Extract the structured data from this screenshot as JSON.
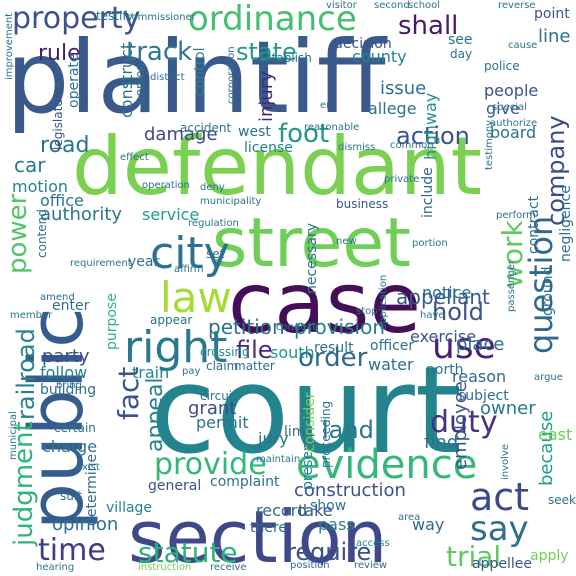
{
  "words": [
    {
      "text": "plaintiff",
      "color": "#3b5a8c"
    },
    {
      "text": "court",
      "color": "#23848e"
    },
    {
      "text": "defendant",
      "color": "#7ad151"
    },
    {
      "text": "case",
      "color": "#440f57"
    },
    {
      "text": "section",
      "color": "#3f4889"
    },
    {
      "text": "street",
      "color": "#6ece58"
    },
    {
      "text": "public",
      "color": "#365c8d"
    },
    {
      "text": "city",
      "color": "#2c728e"
    },
    {
      "text": "law",
      "color": "#a5db36"
    },
    {
      "text": "right",
      "color": "#2a788e"
    },
    {
      "text": "evidence",
      "color": "#35b779"
    },
    {
      "text": "provide",
      "color": "#35b779"
    },
    {
      "text": "statute",
      "color": "#2db27d"
    },
    {
      "text": "property",
      "color": "#3b528b"
    },
    {
      "text": "ordinance",
      "color": "#44bf70"
    },
    {
      "text": "act",
      "color": "#3e4989"
    },
    {
      "text": "say",
      "color": "#2e6e8e"
    },
    {
      "text": "question",
      "color": "#31688e"
    },
    {
      "text": "use",
      "color": "#482173"
    },
    {
      "text": "order",
      "color": "#31688e"
    },
    {
      "text": "time",
      "color": "#443983"
    },
    {
      "text": "fact",
      "color": "#3a548c"
    },
    {
      "text": "trial",
      "color": "#5ec962"
    },
    {
      "text": "track",
      "color": "#2a788e"
    },
    {
      "text": "foot",
      "color": "#1f988b"
    },
    {
      "text": "work",
      "color": "#5ec962"
    },
    {
      "text": "duty",
      "color": "#46327e"
    },
    {
      "text": "rule",
      "color": "#481d6f"
    },
    {
      "text": "state",
      "color": "#1e9b8a"
    },
    {
      "text": "judgment",
      "color": "#2fb47c"
    },
    {
      "text": "railroad",
      "color": "#26828e"
    },
    {
      "text": "power",
      "color": "#52c569"
    },
    {
      "text": "shall",
      "color": "#48186a"
    },
    {
      "text": "company",
      "color": "#3e4a89"
    },
    {
      "text": "road",
      "color": "#2c728e"
    },
    {
      "text": "action",
      "color": "#3b528b"
    },
    {
      "text": "require",
      "color": "#3d4e8a"
    },
    {
      "text": "land",
      "color": "#2a778e"
    },
    {
      "text": "car",
      "color": "#29798e"
    },
    {
      "text": "file",
      "color": "#482878"
    },
    {
      "text": "hold",
      "color": "#3b528b"
    },
    {
      "text": "appeal",
      "color": "#25838e"
    },
    {
      "text": "provision",
      "color": "#26818e"
    },
    {
      "text": "petition",
      "color": "#2d708e"
    },
    {
      "text": "appellant",
      "color": "#38588c"
    },
    {
      "text": "construction",
      "color": "#3b528b"
    },
    {
      "text": "opinion",
      "color": "#2d708e"
    },
    {
      "text": "damage",
      "color": "#3e4989"
    },
    {
      "text": "service",
      "color": "#1e9d89"
    },
    {
      "text": "authority",
      "color": "#2c738e"
    },
    {
      "text": "injury",
      "color": "#482677"
    },
    {
      "text": "county",
      "color": "#26828e"
    },
    {
      "text": "issue",
      "color": "#2d708e"
    },
    {
      "text": "construct",
      "color": "#2c718e"
    },
    {
      "text": "highway",
      "color": "#21918c"
    },
    {
      "text": "motion",
      "color": "#25848e"
    },
    {
      "text": "office",
      "color": "#2a778e"
    },
    {
      "text": "allege",
      "color": "#2c728e"
    },
    {
      "text": "decision",
      "color": "#3a548c"
    },
    {
      "text": "people",
      "color": "#3b528b"
    },
    {
      "text": "give",
      "color": "#37598c"
    },
    {
      "text": "board",
      "color": "#2c728e"
    },
    {
      "text": "line",
      "color": "#2d708e"
    },
    {
      "text": "point",
      "color": "#3b528b"
    },
    {
      "text": "grant",
      "color": "#3d4d8a"
    },
    {
      "text": "notice",
      "color": "#2e6d8e"
    },
    {
      "text": "exercise",
      "color": "#3b528b"
    },
    {
      "text": "place",
      "color": "#2f6c8e"
    },
    {
      "text": "party",
      "color": "#3e4a89"
    },
    {
      "text": "water",
      "color": "#2c718e"
    },
    {
      "text": "owner",
      "color": "#2a788e"
    },
    {
      "text": "charge",
      "color": "#2b748e"
    },
    {
      "text": "employee",
      "color": "#3b528b"
    },
    {
      "text": "find",
      "color": "#2c728e"
    },
    {
      "text": "because",
      "color": "#1fa088"
    },
    {
      "text": "general",
      "color": "#3a548c"
    },
    {
      "text": "complaint",
      "color": "#2c718e"
    },
    {
      "text": "record",
      "color": "#31688e"
    },
    {
      "text": "take",
      "color": "#3b528b"
    },
    {
      "text": "pass",
      "color": "#26828e"
    },
    {
      "text": "way",
      "color": "#31688e"
    },
    {
      "text": "village",
      "color": "#26828e"
    },
    {
      "text": "determine",
      "color": "#2e6e8e"
    },
    {
      "text": "enter",
      "color": "#2d708e"
    },
    {
      "text": "follow",
      "color": "#26818e"
    },
    {
      "text": "building",
      "color": "#2c728e"
    },
    {
      "text": "purpose",
      "color": "#2fb47c"
    },
    {
      "text": "year",
      "color": "#2c728e"
    },
    {
      "text": "necessary",
      "color": "#2b748e"
    },
    {
      "text": "crossing",
      "color": "#21918c"
    },
    {
      "text": "south",
      "color": "#1f9a8a"
    },
    {
      "text": "officer",
      "color": "#2d708e"
    },
    {
      "text": "result",
      "color": "#2d708e"
    },
    {
      "text": "north",
      "color": "#2c728e"
    },
    {
      "text": "train",
      "color": "#26828e"
    },
    {
      "text": "permit",
      "color": "#2c728e"
    },
    {
      "text": "jury",
      "color": "#2c728e"
    },
    {
      "text": "limit",
      "color": "#2c728e"
    },
    {
      "text": "present",
      "color": "#26828e"
    },
    {
      "text": "consider",
      "color": "#75d054"
    },
    {
      "text": "proceeding",
      "color": "#2c728e"
    },
    {
      "text": "subject",
      "color": "#2c728e"
    },
    {
      "text": "reason",
      "color": "#31688e"
    },
    {
      "text": "east",
      "color": "#6ece58"
    },
    {
      "text": "show",
      "color": "#2c728e"
    },
    {
      "text": "there",
      "color": "#31688e"
    },
    {
      "text": "apply",
      "color": "#75d054"
    },
    {
      "text": "appellee",
      "color": "#3b528b"
    },
    {
      "text": "position",
      "color": "#31688e"
    },
    {
      "text": "review",
      "color": "#31688e"
    },
    {
      "text": "hearing",
      "color": "#2c728e"
    },
    {
      "text": "instruction",
      "color": "#75d054"
    },
    {
      "text": "receive",
      "color": "#2c728e"
    },
    {
      "text": "access",
      "color": "#26828e"
    },
    {
      "text": "business",
      "color": "#3b528b"
    },
    {
      "text": "license",
      "color": "#26828e"
    },
    {
      "text": "west",
      "color": "#2c728e"
    },
    {
      "text": "accident",
      "color": "#2c728e"
    },
    {
      "text": "control",
      "color": "#26828e"
    },
    {
      "text": "person",
      "color": "#2c728e"
    },
    {
      "text": "operate",
      "color": "#2c728e"
    },
    {
      "text": "legislature",
      "color": "#3b528b"
    },
    {
      "text": "testify",
      "color": "#2c728e"
    },
    {
      "text": "commissioner",
      "color": "#2c728e"
    },
    {
      "text": "improvement",
      "color": "#2c728e"
    },
    {
      "text": "corporation",
      "color": "#2c728e"
    },
    {
      "text": "establish",
      "color": "#2c728e"
    },
    {
      "text": "district",
      "color": "#2c728e"
    },
    {
      "text": "include",
      "color": "#31688e"
    },
    {
      "text": "negligence",
      "color": "#2c728e"
    },
    {
      "text": "ground",
      "color": "#2c728e"
    },
    {
      "text": "contract",
      "color": "#2c728e"
    },
    {
      "text": "passenger",
      "color": "#2c728e"
    },
    {
      "text": "police",
      "color": "#2c728e"
    },
    {
      "text": "see",
      "color": "#2c728e"
    },
    {
      "text": "day",
      "color": "#2c728e"
    },
    {
      "text": "special",
      "color": "#2c728e"
    },
    {
      "text": "authorize",
      "color": "#2c728e"
    },
    {
      "text": "perform",
      "color": "#2c728e"
    },
    {
      "text": "argue",
      "color": "#2c728e"
    },
    {
      "text": "seek",
      "color": "#2c728e"
    },
    {
      "text": "certain",
      "color": "#2c728e"
    },
    {
      "text": "suit",
      "color": "#2c728e"
    },
    {
      "text": "bring",
      "color": "#2c728e"
    },
    {
      "text": "matter",
      "color": "#2c728e"
    },
    {
      "text": "claim",
      "color": "#2c728e"
    },
    {
      "text": "affirm",
      "color": "#2c728e"
    },
    {
      "text": "deny",
      "color": "#2c728e"
    },
    {
      "text": "operation",
      "color": "#2c728e"
    },
    {
      "text": "contend",
      "color": "#2c728e"
    },
    {
      "text": "amend",
      "color": "#2c728e"
    },
    {
      "text": "circuit",
      "color": "#2c728e"
    },
    {
      "text": "maintain",
      "color": "#2c728e"
    },
    {
      "text": "exist",
      "color": "#2c728e"
    },
    {
      "text": "conduct",
      "color": "#2c728e"
    },
    {
      "text": "appear",
      "color": "#2c728e"
    },
    {
      "text": "reasonable",
      "color": "#2c728e"
    },
    {
      "text": "visitor",
      "color": "#2c728e"
    },
    {
      "text": "second",
      "color": "#2c728e"
    },
    {
      "text": "school",
      "color": "#2c728e"
    },
    {
      "text": "reverse",
      "color": "#2c728e"
    },
    {
      "text": "cause",
      "color": "#2c728e"
    },
    {
      "text": "effect",
      "color": "#2c728e"
    },
    {
      "text": "common",
      "color": "#2c728e"
    },
    {
      "text": "dismiss",
      "color": "#2c728e"
    },
    {
      "text": "municipality",
      "color": "#2c728e"
    },
    {
      "text": "regulation",
      "color": "#2c728e"
    },
    {
      "text": "new",
      "color": "#2c728e"
    },
    {
      "text": "portion",
      "color": "#2c728e"
    },
    {
      "text": "requirement",
      "color": "#2c728e"
    },
    {
      "text": "municipal",
      "color": "#2c728e"
    },
    {
      "text": "stop",
      "color": "#2c728e"
    },
    {
      "text": "have",
      "color": "#2c728e"
    },
    {
      "text": "pay",
      "color": "#2c728e"
    },
    {
      "text": "testimony",
      "color": "#2c728e"
    },
    {
      "text": "involve",
      "color": "#2c728e"
    },
    {
      "text": "area",
      "color": "#2c728e"
    },
    {
      "text": "private",
      "color": "#2c728e"
    },
    {
      "text": "application",
      "color": "#2c728e"
    },
    {
      "text": "member",
      "color": "#2c728e"
    },
    {
      "text": "set",
      "color": "#2c728e"
    },
    {
      "text": "er",
      "color": "#2c728e"
    }
  ]
}
